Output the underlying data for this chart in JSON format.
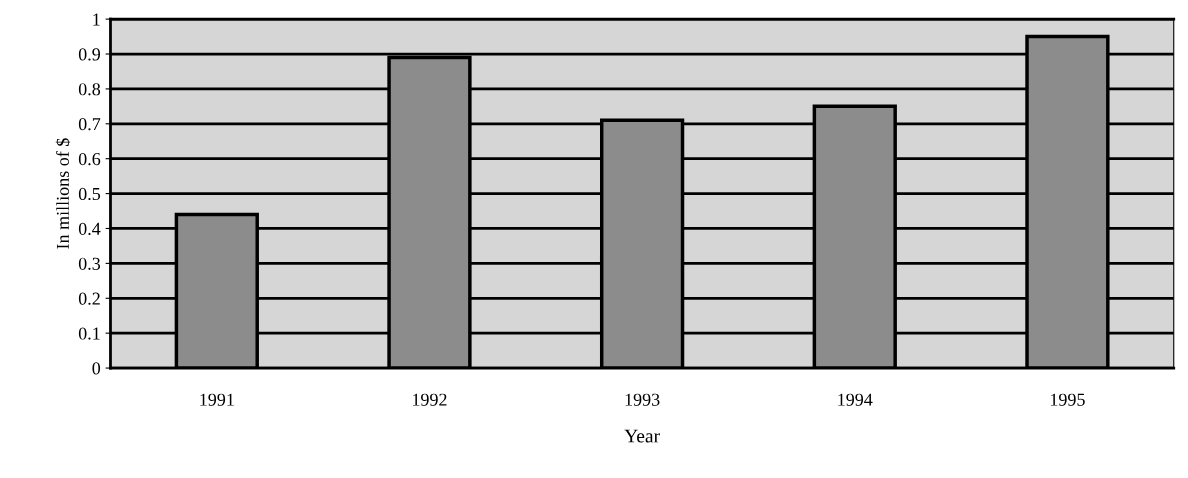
{
  "chart_data": {
    "type": "bar",
    "xlabel": "Year",
    "ylabel": "In millions of $",
    "categories": [
      "1991",
      "1992",
      "1993",
      "1994",
      "1995"
    ],
    "values": [
      0.44,
      0.89,
      0.71,
      0.75,
      0.95
    ],
    "color": "#8c8c8c",
    "ylim": [
      0,
      1
    ],
    "yticks": [
      0,
      {
        "value": 0.1,
        "label": "0.1"
      },
      {
        "value": 0.2,
        "label": "0.2"
      },
      {
        "value": 0.3,
        "label": "0.3"
      },
      {
        "value": 0.4,
        "label": "0.4"
      },
      {
        "value": 0.5,
        "label": "0.5"
      },
      {
        "value": 0.6,
        "label": "0.6"
      },
      {
        "value": 0.7,
        "label": "0.7"
      },
      {
        "value": 0.8,
        "label": "0.8"
      },
      {
        "value": 0.9,
        "label": "0.9"
      },
      1
    ],
    "grid": "y"
  }
}
